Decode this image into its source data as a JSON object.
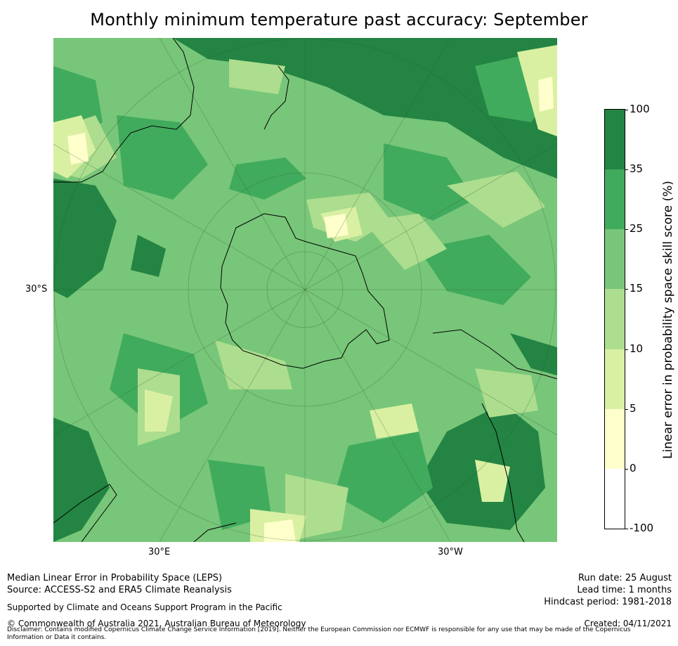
{
  "title": "Monthly minimum temperature past accuracy: September",
  "map": {
    "projection": "south-polar-stereographic",
    "lat_ticks": [
      "30°S"
    ],
    "lon_ticks": [
      "30°E",
      "30°W"
    ]
  },
  "colorbar": {
    "label": "Linear error in probability space skill score (%)",
    "ticks": [
      "100",
      "35",
      "25",
      "15",
      "10",
      "5",
      "0",
      "-100"
    ],
    "bins": [
      {
        "from": -100,
        "to": 0,
        "color": "#ffffff"
      },
      {
        "from": 0,
        "to": 5,
        "color": "#ffffcc"
      },
      {
        "from": 5,
        "to": 10,
        "color": "#d9f0a3"
      },
      {
        "from": 10,
        "to": 15,
        "color": "#addd8e"
      },
      {
        "from": 15,
        "to": 25,
        "color": "#78c679"
      },
      {
        "from": 25,
        "to": 35,
        "color": "#41ab5d"
      },
      {
        "from": 35,
        "to": 100,
        "color": "#238443"
      }
    ]
  },
  "footer": {
    "left_line1": "Median Linear Error in Probability Space (LEPS)",
    "left_line2": "Source: ACCESS-S2 and ERA5 Climate Reanalysis",
    "support": "Supported by Climate and Oceans Support Program in the Pacific",
    "copyright": "© Commonwealth of Australia 2021, Australian Bureau of Meteorology",
    "disclaimer": "Disclaimer: Contains modified Copernicus Climate Change Service Information [2019]. Neither the European Commission nor ECMWF is responsible for any use that may be made of the Copernicus Information or Data it contains.",
    "run_date": "Run date: 25 August",
    "lead_time": "Lead time: 1 months",
    "hindcast": "Hindcast period: 1981-2018",
    "created": "Created: 04/11/2021"
  }
}
